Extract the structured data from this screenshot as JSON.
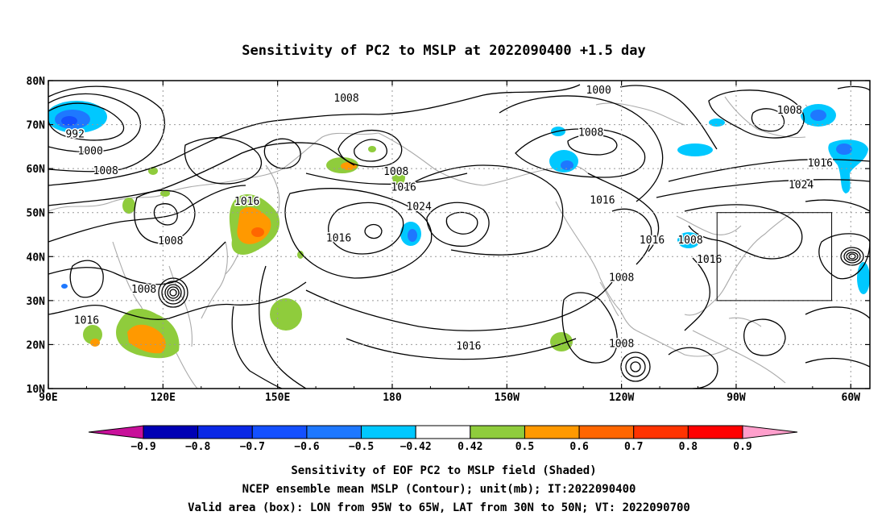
{
  "title": "Sensitivity of PC2 to MSLP at 2022090400 +1.5 day",
  "map": {
    "lat_labels": [
      "80N",
      "70N",
      "60N",
      "50N",
      "40N",
      "30N",
      "20N",
      "10N"
    ],
    "lon_labels": [
      "90E",
      "120E",
      "150E",
      "180",
      "150W",
      "120W",
      "90W",
      "60W"
    ],
    "contour_labels": [
      {
        "text": "992",
        "lon": 97,
        "lat": 67.8
      },
      {
        "text": "1000",
        "lon": 101,
        "lat": 64
      },
      {
        "text": "1008",
        "lon": 105,
        "lat": 59.5
      },
      {
        "text": "1008",
        "lon": 122,
        "lat": 43.5
      },
      {
        "text": "1008",
        "lon": 115,
        "lat": 32.5
      },
      {
        "text": "1016",
        "lon": 100,
        "lat": 25.5
      },
      {
        "text": "1016",
        "lon": 142,
        "lat": 52.5
      },
      {
        "text": "1008",
        "lon": 168,
        "lat": 76
      },
      {
        "text": "1008",
        "lon": 181,
        "lat": 59.3
      },
      {
        "text": "1016",
        "lon": 183,
        "lat": 55.7
      },
      {
        "text": "1024",
        "lon": 187,
        "lat": 51.3
      },
      {
        "text": "1016",
        "lon": 166,
        "lat": 44.2
      },
      {
        "text": "1000",
        "lon": 234,
        "lat": 77.8
      },
      {
        "text": "1008",
        "lon": 232,
        "lat": 68.2
      },
      {
        "text": "1016",
        "lon": 235,
        "lat": 52.8
      },
      {
        "text": "1016",
        "lon": 248,
        "lat": 43.7
      },
      {
        "text": "1008",
        "lon": 258,
        "lat": 43.7
      },
      {
        "text": "1016",
        "lon": 263,
        "lat": 39.3
      },
      {
        "text": "1008",
        "lon": 240,
        "lat": 35.2
      },
      {
        "text": "1008",
        "lon": 240,
        "lat": 20.2
      },
      {
        "text": "1016",
        "lon": 200,
        "lat": 19.6
      },
      {
        "text": "1008",
        "lon": 284,
        "lat": 73.2
      },
      {
        "text": "1016",
        "lon": 292,
        "lat": 61.2
      },
      {
        "text": "1024",
        "lon": 287,
        "lat": 56.3
      }
    ],
    "valid_box": {
      "lon_min": -95,
      "lon_max": -65,
      "lat_min": 30,
      "lat_max": 50
    }
  },
  "colorbar": {
    "labels": [
      "−0.9",
      "−0.8",
      "−0.7",
      "−0.6",
      "−0.5",
      "−0.42",
      "0.42",
      "0.5",
      "0.6",
      "0.7",
      "0.8",
      "0.9"
    ],
    "colors": [
      "#0000b4",
      "#0a28e6",
      "#1450ff",
      "#1e78ff",
      "#00c8ff",
      "#ffffff",
      "#8fcc3c",
      "#ff9900",
      "#ff6600",
      "#ff3300",
      "#ff0000"
    ],
    "end_low_color": "#c8109a",
    "end_high_color": "#ff9fcc"
  },
  "caption": {
    "line1": "Sensitivity of EOF PC2 to MSLP field (Shaded)",
    "line2": "NCEP ensemble mean MSLP (Contour); unit(mb); IT:2022090400",
    "line3": "Valid area (box): LON from 95W to 65W, LAT from 30N to 50N; VT: 2022090700"
  }
}
